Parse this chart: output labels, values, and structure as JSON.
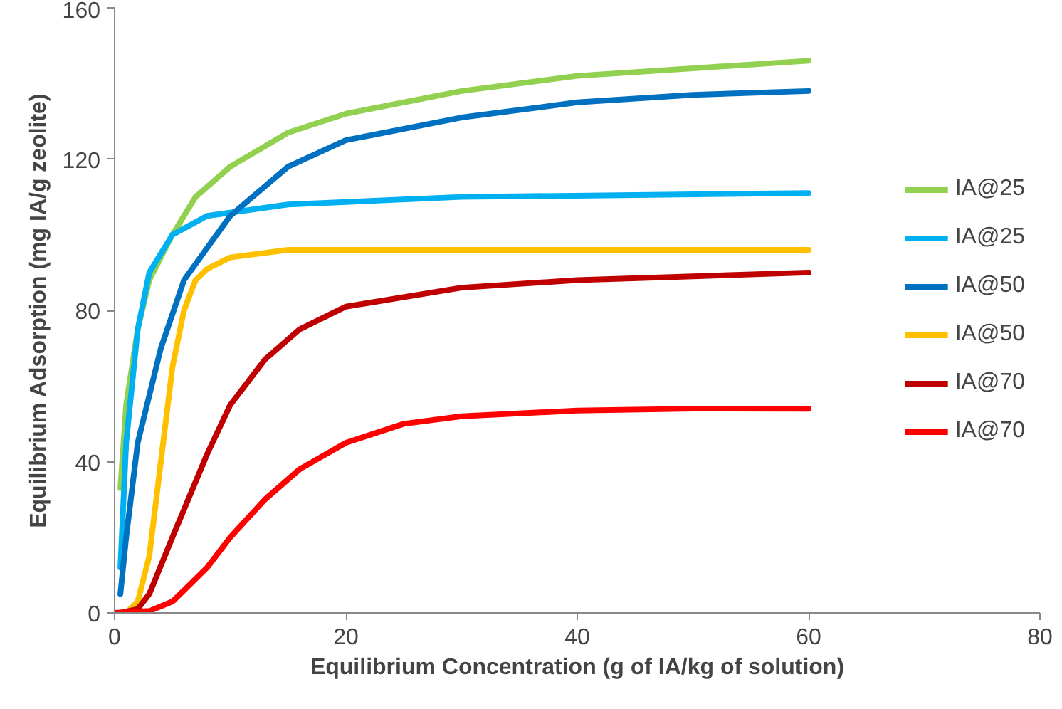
{
  "chart_data": {
    "type": "line",
    "xlabel": "Equilibrium Concentration (g of IA/kg of solution)",
    "ylabel": "Equilibrium Adsorption (mg IA/g zeolite)",
    "xlim": [
      0,
      80
    ],
    "ylim": [
      0,
      160
    ],
    "xticks": [
      0,
      20,
      40,
      60,
      80
    ],
    "yticks": [
      0,
      40,
      80,
      120,
      160
    ],
    "grid": false,
    "legend": "right",
    "marker": "none",
    "line_style": "solid",
    "series": [
      {
        "name": "IA@25",
        "color": "#92d050",
        "x": [
          0.5,
          1,
          2,
          3,
          5,
          7,
          10,
          15,
          20,
          30,
          40,
          50,
          60
        ],
        "values": [
          33,
          55,
          75,
          88,
          100,
          110,
          118,
          127,
          132,
          138,
          142,
          144,
          146
        ]
      },
      {
        "name": "IA@25",
        "color": "#00b0f0",
        "x": [
          0.5,
          1,
          2,
          3,
          5,
          8,
          15,
          30,
          45,
          60
        ],
        "values": [
          12,
          45,
          75,
          90,
          100,
          105,
          108,
          110,
          110.5,
          111
        ]
      },
      {
        "name": "IA@50",
        "color": "#0070c0",
        "x": [
          0.5,
          1,
          2,
          4,
          6,
          10,
          15,
          20,
          30,
          40,
          50,
          60
        ],
        "values": [
          5,
          20,
          45,
          70,
          88,
          105,
          118,
          125,
          131,
          135,
          137,
          138
        ]
      },
      {
        "name": "IA@50",
        "color": "#ffc000",
        "x": [
          1,
          2,
          3,
          4,
          5,
          6,
          7,
          8,
          10,
          15,
          30,
          60
        ],
        "values": [
          0,
          3,
          15,
          40,
          65,
          80,
          88,
          91,
          94,
          96,
          96,
          96
        ]
      },
      {
        "name": "IA@70",
        "color": "#c00000",
        "x": [
          0.5,
          2,
          3,
          5,
          8,
          10,
          13,
          16,
          20,
          30,
          40,
          50,
          60
        ],
        "values": [
          0,
          1,
          5,
          20,
          42,
          55,
          67,
          75,
          81,
          86,
          88,
          89,
          90
        ]
      },
      {
        "name": "IA@70",
        "color": "#ff0000",
        "x": [
          0,
          3,
          5,
          8,
          10,
          13,
          16,
          20,
          25,
          30,
          40,
          50,
          60
        ],
        "values": [
          0,
          0.5,
          3,
          12,
          20,
          30,
          38,
          45,
          50,
          52,
          53.5,
          54,
          54
        ]
      }
    ]
  }
}
